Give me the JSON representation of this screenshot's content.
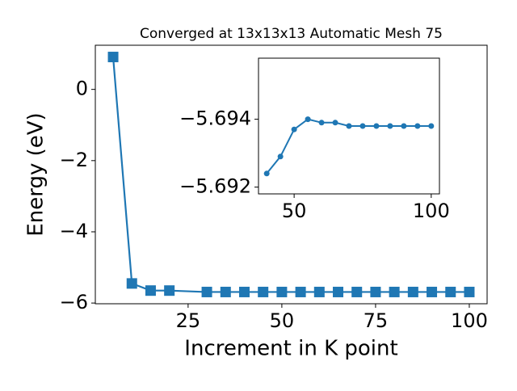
{
  "chart_data": [
    {
      "type": "line",
      "title": "Converged at 13x13x13 Automatic Mesh 75",
      "x_label": "Increment in K point",
      "y_label": "Energy (eV)",
      "x": [
        5,
        10,
        15,
        20,
        30,
        35,
        40,
        45,
        50,
        55,
        60,
        65,
        70,
        75,
        80,
        85,
        90,
        95,
        100
      ],
      "series": [
        {
          "color": "#1f77b4",
          "marker": "square",
          "values": [
            0.91,
            -5.45,
            -5.65,
            -5.65,
            -5.69,
            -5.69,
            -5.69,
            -5.69,
            -5.69,
            -5.69,
            -5.69,
            -5.69,
            -5.69,
            -5.69,
            -5.69,
            -5.69,
            -5.69,
            -5.69,
            -5.69
          ]
        }
      ],
      "xlim": [
        0.25,
        104.75
      ],
      "xticks": [
        25,
        50,
        75,
        100
      ],
      "ylim": [
        -6.02,
        1.24
      ],
      "yticks": [
        0,
        {
          "value": -2,
          "label": "−2"
        },
        {
          "value": -4,
          "label": "−4"
        },
        {
          "value": -6,
          "label": "−6"
        }
      ]
    },
    {
      "type": "line",
      "x": [
        40,
        45,
        50,
        55,
        60,
        65,
        70,
        75,
        80,
        85,
        90,
        95,
        100
      ],
      "series": [
        {
          "color": "#1f77b4",
          "marker": "circle",
          "values": [
            -5.6924,
            -5.6929,
            -5.6937,
            -5.694,
            -5.6939,
            -5.6939,
            -5.6938,
            -5.6938,
            -5.6938,
            -5.6938,
            -5.6938,
            -5.6938,
            -5.6938
          ]
        }
      ],
      "xlim": [
        37,
        103
      ],
      "xticks": [
        50,
        100
      ],
      "ylim": [
        -5.6918,
        -5.6958
      ],
      "yticks": [
        {
          "value": -5.694,
          "label": "−5.694"
        },
        {
          "value": -5.692,
          "label": "−5.692"
        }
      ]
    }
  ]
}
